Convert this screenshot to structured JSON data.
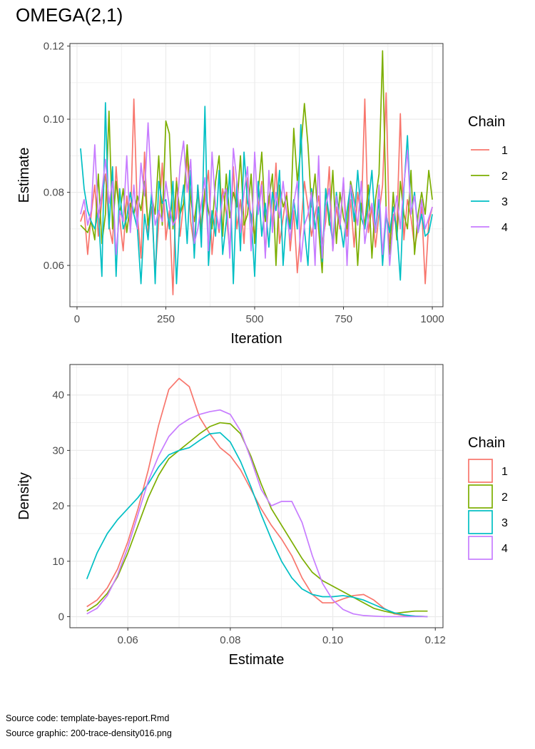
{
  "title": "OMEGA(2,1)",
  "footer": {
    "source_code": "Source code: template-bayes-report.Rmd",
    "source_graphic": "Source graphic: 200-trace-density016.png"
  },
  "colors": {
    "chain_1": "#F8766D",
    "chain_2": "#7CAE00",
    "chain_3": "#00BFC4",
    "chain_4": "#C77CFF",
    "grid": "#EBEBEB",
    "panel_border": "#333333",
    "tick_text": "#4D4D4D"
  },
  "chart_data": [
    {
      "type": "line",
      "panel": "trace",
      "xlabel": "Iteration",
      "ylabel": "Estimate",
      "xlim": [
        -20,
        1030
      ],
      "ylim": [
        0.0487,
        0.1207
      ],
      "xticks": [
        0,
        250,
        500,
        750,
        1000
      ],
      "xtick_labels": [
        "0",
        "250",
        "500",
        "750",
        "1000"
      ],
      "yticks": [
        0.06,
        0.08,
        0.1,
        0.12
      ],
      "ytick_labels": [
        "0.06",
        "0.08",
        "0.10",
        "0.12"
      ],
      "grid": true,
      "legend": {
        "title": "Chain",
        "position": "right",
        "entries": [
          "1",
          "2",
          "3",
          "4"
        ]
      },
      "x": [
        10,
        20,
        30,
        40,
        50,
        60,
        70,
        80,
        90,
        100,
        110,
        120,
        130,
        140,
        150,
        160,
        170,
        180,
        190,
        200,
        210,
        220,
        230,
        240,
        250,
        260,
        270,
        280,
        290,
        300,
        310,
        320,
        330,
        340,
        350,
        360,
        370,
        380,
        390,
        400,
        410,
        420,
        430,
        440,
        450,
        460,
        470,
        480,
        490,
        500,
        510,
        520,
        530,
        540,
        550,
        560,
        570,
        580,
        590,
        600,
        610,
        620,
        630,
        640,
        650,
        660,
        670,
        680,
        690,
        700,
        710,
        720,
        730,
        740,
        750,
        760,
        770,
        780,
        790,
        800,
        810,
        820,
        830,
        840,
        850,
        860,
        870,
        880,
        890,
        900,
        910,
        920,
        930,
        940,
        950,
        960,
        970,
        980,
        990,
        1000
      ],
      "series": [
        {
          "name": "1",
          "values": [
            0.072,
            0.075,
            0.063,
            0.074,
            0.082,
            0.068,
            0.078,
            0.085,
            0.071,
            0.066,
            0.087,
            0.073,
            0.064,
            0.079,
            0.07,
            0.1055,
            0.074,
            0.062,
            0.091,
            0.069,
            0.076,
            0.058,
            0.072,
            0.088,
            0.067,
            0.075,
            0.052,
            0.084,
            0.068,
            0.077,
            0.09,
            0.072,
            0.065,
            0.082,
            0.071,
            0.078,
            0.086,
            0.063,
            0.075,
            0.069,
            0.081,
            0.074,
            0.064,
            0.087,
            0.07,
            0.078,
            0.066,
            0.084,
            0.072,
            0.068,
            0.076,
            0.083,
            0.063,
            0.079,
            0.071,
            0.088,
            0.066,
            0.073,
            0.08,
            0.064,
            0.075,
            0.058,
            0.07,
            0.083,
            0.076,
            0.068,
            0.074,
            0.079,
            0.066,
            0.072,
            0.087,
            0.064,
            0.076,
            0.07,
            0.083,
            0.068,
            0.078,
            0.065,
            0.08,
            0.073,
            0.1055,
            0.069,
            0.076,
            0.065,
            0.074,
            0.082,
            0.1072,
            0.066,
            0.074,
            0.07,
            0.1015,
            0.067,
            0.078,
            0.073,
            0.065,
            0.07,
            0.076,
            0.055,
            0.072,
            0.076
          ]
        },
        {
          "name": "2",
          "values": [
            0.071,
            0.07,
            0.069,
            0.072,
            0.067,
            0.085,
            0.066,
            0.074,
            0.1022,
            0.07,
            0.083,
            0.074,
            0.081,
            0.069,
            0.077,
            0.074,
            0.079,
            0.075,
            0.083,
            0.071,
            0.079,
            0.074,
            0.09,
            0.071,
            0.0995,
            0.096,
            0.07,
            0.083,
            0.074,
            0.077,
            0.093,
            0.078,
            0.072,
            0.08,
            0.069,
            0.081,
            0.075,
            0.07,
            0.083,
            0.09,
            0.068,
            0.085,
            0.073,
            0.08,
            0.076,
            0.09,
            0.071,
            0.074,
            0.085,
            0.066,
            0.08,
            0.091,
            0.072,
            0.078,
            0.085,
            0.06,
            0.082,
            0.076,
            0.079,
            0.07,
            0.0975,
            0.083,
            0.092,
            0.1043,
            0.093,
            0.076,
            0.085,
            0.07,
            0.058,
            0.081,
            0.071,
            0.086,
            0.066,
            0.08,
            0.073,
            0.07,
            0.083,
            0.078,
            0.06,
            0.077,
            0.071,
            0.082,
            0.062,
            0.078,
            0.085,
            0.1187,
            0.075,
            0.063,
            0.08,
            0.067,
            0.083,
            0.074,
            0.07,
            0.086,
            0.063,
            0.074,
            0.08,
            0.074,
            0.086,
            0.078
          ]
        },
        {
          "name": "3",
          "values": [
            0.092,
            0.081,
            0.075,
            0.072,
            0.07,
            0.075,
            0.057,
            0.1045,
            0.07,
            0.087,
            0.057,
            0.081,
            0.07,
            0.073,
            0.08,
            0.074,
            0.07,
            0.055,
            0.074,
            0.067,
            0.08,
            0.055,
            0.083,
            0.077,
            0.078,
            0.07,
            0.083,
            0.055,
            0.074,
            0.082,
            0.066,
            0.086,
            0.062,
            0.082,
            0.065,
            0.1035,
            0.06,
            0.075,
            0.068,
            0.086,
            0.063,
            0.072,
            0.086,
            0.055,
            0.083,
            0.064,
            0.091,
            0.077,
            0.074,
            0.057,
            0.083,
            0.068,
            0.077,
            0.065,
            0.08,
            0.075,
            0.086,
            0.06,
            0.074,
            0.07,
            0.078,
            0.07,
            0.0985,
            0.07,
            0.06,
            0.081,
            0.07,
            0.076,
            0.061,
            0.081,
            0.073,
            0.066,
            0.08,
            0.072,
            0.065,
            0.075,
            0.082,
            0.072,
            0.086,
            0.073,
            0.07,
            0.077,
            0.086,
            0.069,
            0.078,
            0.06,
            0.074,
            0.069,
            0.076,
            0.07,
            0.056,
            0.081,
            0.0955,
            0.074,
            0.08,
            0.069,
            0.074,
            0.068,
            0.069,
            0.074
          ]
        },
        {
          "name": "4",
          "values": [
            0.074,
            0.078,
            0.071,
            0.075,
            0.093,
            0.073,
            0.08,
            0.089,
            0.077,
            0.083,
            0.063,
            0.075,
            0.072,
            0.09,
            0.069,
            0.082,
            0.07,
            0.088,
            0.079,
            0.099,
            0.08,
            0.071,
            0.075,
            0.072,
            0.083,
            0.076,
            0.071,
            0.073,
            0.087,
            0.094,
            0.08,
            0.089,
            0.066,
            0.07,
            0.077,
            0.084,
            0.064,
            0.091,
            0.076,
            0.07,
            0.079,
            0.081,
            0.062,
            0.092,
            0.083,
            0.069,
            0.08,
            0.087,
            0.064,
            0.091,
            0.074,
            0.082,
            0.062,
            0.086,
            0.069,
            0.08,
            0.073,
            0.083,
            0.074,
            0.067,
            0.077,
            0.083,
            0.061,
            0.071,
            0.074,
            0.08,
            0.06,
            0.09,
            0.062,
            0.076,
            0.081,
            0.064,
            0.079,
            0.071,
            0.084,
            0.06,
            0.082,
            0.077,
            0.071,
            0.083,
            0.066,
            0.073,
            0.077,
            0.069,
            0.082,
            0.063,
            0.076,
            0.06,
            0.072,
            0.079,
            0.07,
            0.082,
            0.0915,
            0.074,
            0.079,
            0.069,
            0.078,
            0.07,
            0.073,
            0.076
          ]
        }
      ]
    },
    {
      "type": "line",
      "panel": "density",
      "xlabel": "Estimate",
      "ylabel": "Density",
      "xlim": [
        0.0487,
        0.1215
      ],
      "ylim": [
        -2.0,
        45.5
      ],
      "xticks": [
        0.06,
        0.08,
        0.1,
        0.12
      ],
      "xtick_labels": [
        "0.06",
        "0.08",
        "0.10",
        "0.12"
      ],
      "yticks": [
        0,
        10,
        20,
        30,
        40
      ],
      "ytick_labels": [
        "0",
        "10",
        "20",
        "30",
        "40"
      ],
      "grid": true,
      "legend": {
        "title": "Chain",
        "position": "right",
        "entries": [
          "1",
          "2",
          "3",
          "4"
        ]
      },
      "x": [
        0.052,
        0.054,
        0.056,
        0.058,
        0.06,
        0.062,
        0.064,
        0.066,
        0.068,
        0.07,
        0.072,
        0.074,
        0.076,
        0.078,
        0.08,
        0.082,
        0.084,
        0.086,
        0.088,
        0.09,
        0.092,
        0.094,
        0.096,
        0.098,
        0.1,
        0.102,
        0.104,
        0.106,
        0.108,
        0.11,
        0.112,
        0.114,
        0.116,
        0.1185
      ],
      "series": [
        {
          "name": "1",
          "values": [
            1.8,
            3.0,
            5.2,
            8.6,
            13.5,
            19.5,
            26.5,
            34.5,
            41.0,
            43.0,
            41.5,
            36.0,
            33.0,
            30.5,
            29.0,
            26.5,
            23.0,
            19.5,
            16.5,
            14.0,
            11.0,
            7.0,
            4.0,
            2.5,
            2.5,
            3.2,
            3.8,
            4.0,
            3.0,
            1.5,
            0.5,
            0.2,
            0.1,
            0.0
          ]
        },
        {
          "name": "2",
          "values": [
            1.0,
            2.2,
            4.2,
            7.2,
            11.5,
            16.5,
            21.5,
            25.5,
            28.5,
            30.0,
            31.5,
            33.0,
            34.3,
            35.0,
            34.8,
            33.0,
            29.0,
            24.0,
            19.5,
            16.5,
            13.5,
            10.5,
            8.0,
            6.5,
            5.5,
            4.5,
            3.5,
            2.5,
            1.5,
            1.0,
            0.6,
            0.8,
            1.0,
            1.0
          ]
        },
        {
          "name": "3",
          "values": [
            6.8,
            11.5,
            15.0,
            17.5,
            19.5,
            21.5,
            24.0,
            27.0,
            29.2,
            30.0,
            30.5,
            31.8,
            33.0,
            33.2,
            31.5,
            28.0,
            23.5,
            18.5,
            14.0,
            10.0,
            7.0,
            5.0,
            4.0,
            3.6,
            3.6,
            3.8,
            3.5,
            3.0,
            2.2,
            1.4,
            0.7,
            0.3,
            0.1,
            0.0
          ]
        },
        {
          "name": "4",
          "values": [
            0.5,
            1.5,
            3.8,
            7.5,
            12.5,
            18.5,
            24.5,
            29.0,
            32.5,
            34.5,
            35.7,
            36.5,
            37.0,
            37.3,
            36.5,
            33.5,
            28.5,
            23.0,
            20.0,
            20.8,
            20.8,
            17.0,
            11.0,
            6.0,
            3.0,
            1.3,
            0.5,
            0.2,
            0.1,
            0.0,
            0.0,
            0.0,
            0.0,
            0.0
          ]
        }
      ]
    }
  ]
}
